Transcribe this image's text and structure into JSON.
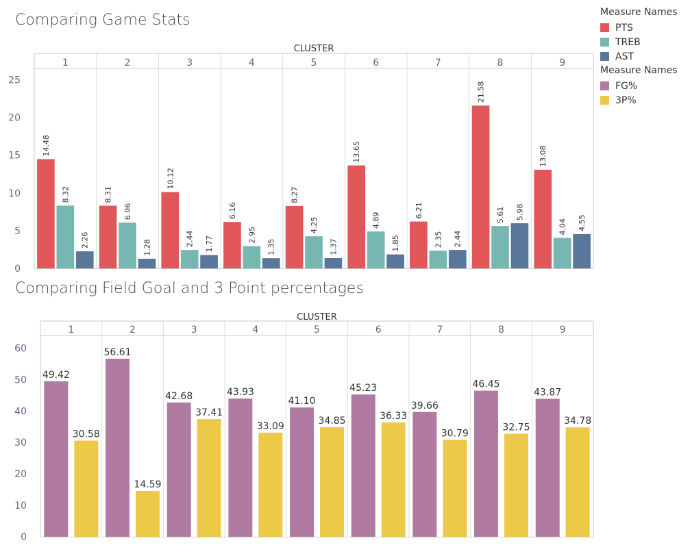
{
  "titles": {
    "chart1": "Comparing Game Stats",
    "chart2": "Comparing Field Goal and 3 Point percentages"
  },
  "legend": {
    "groups": [
      {
        "title": "Measure Names",
        "items": [
          {
            "label": "PTS",
            "color": "#e15759"
          },
          {
            "label": "TREB",
            "color": "#76b7b2"
          },
          {
            "label": "AST",
            "color": "#59769b"
          }
        ]
      },
      {
        "title": "Measure Names",
        "items": [
          {
            "label": "FG%",
            "color": "#b07aa1"
          },
          {
            "label": "3P%",
            "color": "#edc948"
          }
        ]
      }
    ]
  },
  "chart_data": [
    {
      "type": "bar",
      "title": "Comparing Game Stats",
      "column_header": "CLUSTER",
      "categories": [
        "1",
        "2",
        "3",
        "4",
        "5",
        "6",
        "7",
        "8",
        "9"
      ],
      "series": [
        {
          "name": "PTS",
          "color": "#e15759",
          "values": [
            14.48,
            8.31,
            10.12,
            6.16,
            8.27,
            13.65,
            6.21,
            21.58,
            13.08
          ],
          "labels": [
            "14.48",
            "8.31",
            "10.12",
            "6.16",
            "8.27",
            "13.65",
            "6.21",
            "21.58",
            "13.08"
          ]
        },
        {
          "name": "TREB",
          "color": "#76b7b2",
          "values": [
            8.32,
            6.06,
            2.44,
            2.95,
            4.25,
            4.89,
            2.35,
            5.61,
            4.04
          ],
          "labels": [
            "8.32",
            "6.06",
            "2.44",
            "2.95",
            "4.25",
            "4.89",
            "2.35",
            "5.61",
            "4.04"
          ]
        },
        {
          "name": "AST",
          "color": "#59769b",
          "values": [
            2.26,
            1.28,
            1.77,
            1.35,
            1.37,
            1.85,
            2.44,
            5.98,
            4.55
          ],
          "labels": [
            "2.26",
            "1.28",
            "1.77",
            "1.35",
            "1.37",
            "1.85",
            "2.44",
            "5.98",
            "4.55"
          ]
        }
      ],
      "yticks": [
        0,
        5,
        10,
        15,
        20,
        25
      ],
      "ylim": [
        0,
        26.5
      ],
      "grid": false,
      "label_orientation": "vertical"
    },
    {
      "type": "bar",
      "title": "Comparing Field Goal and 3 Point percentages",
      "column_header": "CLUSTER",
      "categories": [
        "1",
        "2",
        "3",
        "4",
        "5",
        "6",
        "7",
        "8",
        "9"
      ],
      "series": [
        {
          "name": "FG%",
          "color": "#b07aa1",
          "values": [
            49.42,
            56.61,
            42.68,
            43.93,
            41.1,
            45.23,
            39.66,
            46.45,
            43.87
          ],
          "labels": [
            "49.42",
            "56.61",
            "42.68",
            "43.93",
            "41.10",
            "45.23",
            "39.66",
            "46.45",
            "43.87"
          ]
        },
        {
          "name": "3P%",
          "color": "#edc948",
          "values": [
            30.58,
            14.59,
            37.41,
            33.09,
            34.85,
            36.33,
            30.79,
            32.75,
            34.78
          ],
          "labels": [
            "30.58",
            "14.59",
            "37.41",
            "33.09",
            "34.85",
            "36.33",
            "30.79",
            "32.75",
            "34.78"
          ]
        }
      ],
      "yticks": [
        0,
        10,
        20,
        30,
        40,
        50,
        60
      ],
      "ylim": [
        0,
        64
      ],
      "grid": false,
      "label_orientation": "horizontal"
    }
  ]
}
